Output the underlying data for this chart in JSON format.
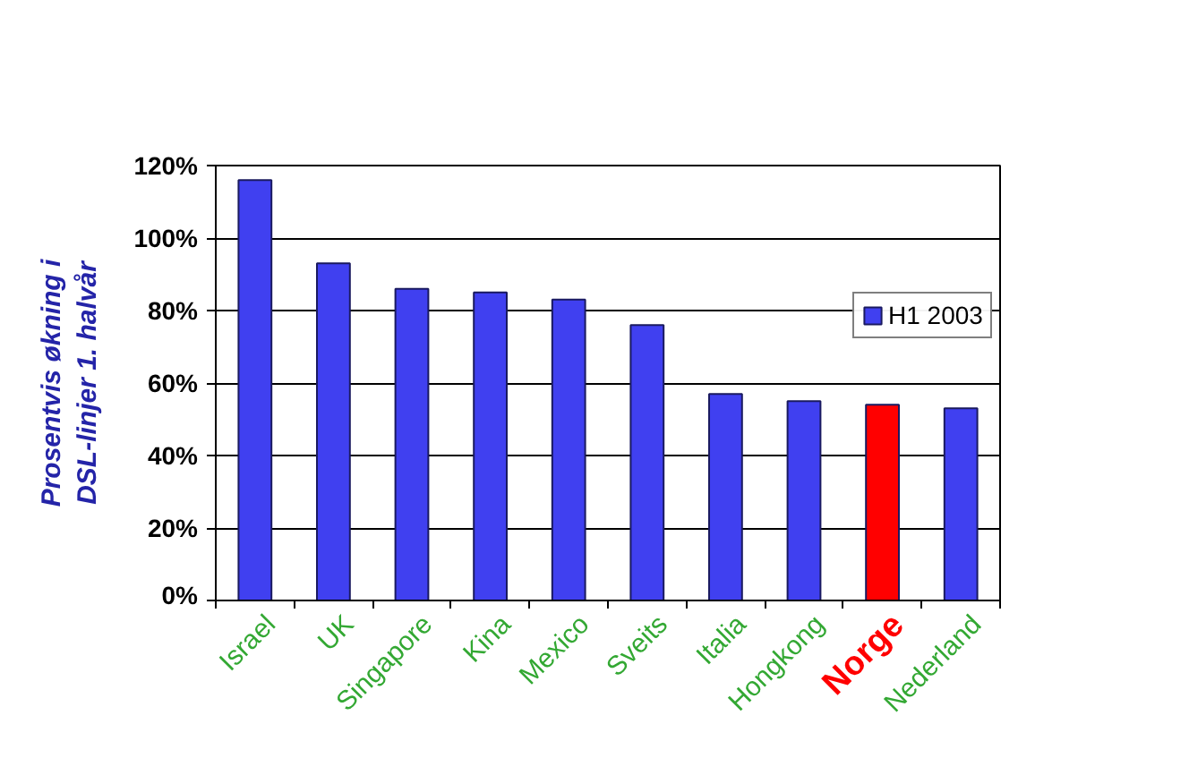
{
  "chart_data": {
    "type": "bar",
    "categories": [
      "Israel",
      "UK",
      "Singapore",
      "Kina",
      "Mexico",
      "Sveits",
      "Italia",
      "Hongkong",
      "Norge",
      "Nederland"
    ],
    "series": [
      {
        "name": "H1 2003",
        "color": "#4040f0",
        "colors": [
          "#4040f0",
          "#4040f0",
          "#4040f0",
          "#4040f0",
          "#4040f0",
          "#4040f0",
          "#4040f0",
          "#4040f0",
          "#ff0000",
          "#4040f0"
        ],
        "values": [
          116,
          93,
          86,
          85,
          83,
          76,
          57,
          55,
          54,
          53
        ]
      }
    ],
    "ylabel": "Prosentvis økning i\nDSL-linjer 1. halvår",
    "ylim": [
      0,
      120
    ],
    "yticks": [
      {
        "value": 0,
        "label": "0%"
      },
      {
        "value": 20,
        "label": "20%"
      },
      {
        "value": 40,
        "label": "40%"
      },
      {
        "value": 60,
        "label": "60%"
      },
      {
        "value": 80,
        "label": "80%"
      },
      {
        "value": 100,
        "label": "100%"
      },
      {
        "value": 120,
        "label": "120%"
      }
    ],
    "grid": "y",
    "legend": "right"
  }
}
